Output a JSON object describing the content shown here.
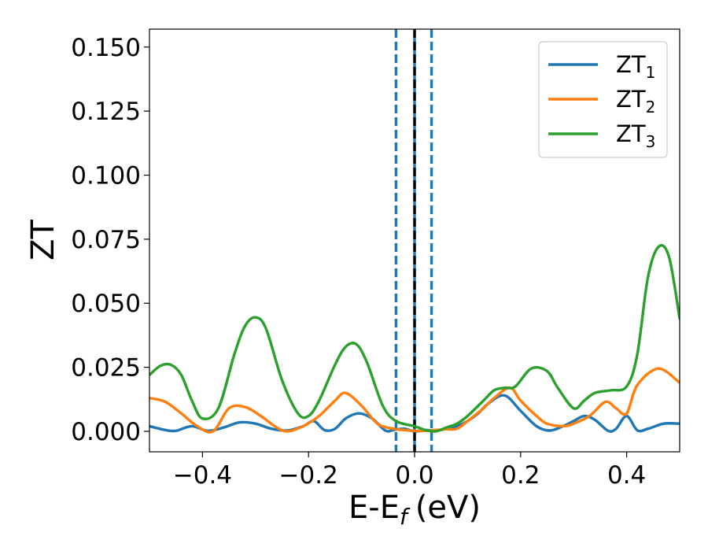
{
  "chart_data": {
    "type": "line",
    "title": "",
    "xlabel": "E-E",
    "xlabel_sub": "f",
    "xlabel_unit": "(eV)",
    "ylabel": "ZT",
    "xlim": [
      -0.5,
      0.5
    ],
    "ylim": [
      -0.008,
      0.157
    ],
    "x_ticks": [
      -0.4,
      -0.2,
      0.0,
      0.2,
      0.4
    ],
    "x_tick_labels": [
      "−0.4",
      "−0.2",
      "0.0",
      "0.2",
      "0.4"
    ],
    "y_ticks": [
      0.0,
      0.025,
      0.05,
      0.075,
      0.1,
      0.125,
      0.15
    ],
    "y_tick_labels": [
      "0.000",
      "0.025",
      "0.050",
      "0.075",
      "0.100",
      "0.125",
      "0.150"
    ],
    "grid": false,
    "legend_position": "top-right",
    "vertical_lines": [
      {
        "x": -0.035,
        "style": "dashed",
        "color": "#1f77b4"
      },
      {
        "x": 0.0,
        "style": "solid",
        "color": "#1f77b4"
      },
      {
        "x": 0.0,
        "style": "dashed",
        "color": "#000000"
      },
      {
        "x": 0.032,
        "style": "dashed",
        "color": "#1f77b4"
      }
    ],
    "series": [
      {
        "name": "ZT",
        "name_sub": "1",
        "color": "#1f77b4",
        "x": [
          -0.5,
          -0.47,
          -0.45,
          -0.42,
          -0.39,
          -0.36,
          -0.33,
          -0.3,
          -0.27,
          -0.24,
          -0.21,
          -0.19,
          -0.17,
          -0.15,
          -0.13,
          -0.105,
          -0.08,
          -0.055,
          -0.04,
          -0.02,
          0.0,
          0.02,
          0.04,
          0.06,
          0.08,
          0.1,
          0.12,
          0.14,
          0.17,
          0.2,
          0.23,
          0.255,
          0.28,
          0.3,
          0.32,
          0.34,
          0.365,
          0.38,
          0.4,
          0.42,
          0.44,
          0.47,
          0.5
        ],
        "y": [
          0.002,
          0.0005,
          0.0002,
          0.002,
          0.0002,
          0.0015,
          0.0035,
          0.003,
          0.001,
          0.0003,
          0.002,
          0.004,
          0.0005,
          0.001,
          0.005,
          0.007,
          0.005,
          0.0003,
          0.0005,
          0.001,
          0.0,
          0.0005,
          0.0003,
          0.001,
          0.002,
          0.004,
          0.007,
          0.011,
          0.014,
          0.008,
          0.002,
          0.0003,
          0.002,
          0.004,
          0.006,
          0.0045,
          0.0002,
          0.001,
          0.006,
          0.0004,
          0.001,
          0.003,
          0.003
        ]
      },
      {
        "name": "ZT",
        "name_sub": "2",
        "color": "#ff7f0e",
        "x": [
          -0.5,
          -0.47,
          -0.44,
          -0.41,
          -0.38,
          -0.35,
          -0.32,
          -0.29,
          -0.26,
          -0.24,
          -0.21,
          -0.18,
          -0.15,
          -0.13,
          -0.1,
          -0.07,
          -0.04,
          -0.02,
          0.0,
          0.02,
          0.04,
          0.06,
          0.08,
          0.1,
          0.13,
          0.15,
          0.18,
          0.2,
          0.23,
          0.25,
          0.28,
          0.3,
          0.33,
          0.36,
          0.38,
          0.4,
          0.42,
          0.46,
          0.5
        ],
        "y": [
          0.013,
          0.0115,
          0.007,
          0.002,
          0.0,
          0.009,
          0.0095,
          0.006,
          0.0015,
          0.0,
          0.002,
          0.006,
          0.012,
          0.015,
          0.01,
          0.003,
          0.001,
          0.0005,
          0.0002,
          0.0002,
          0.0005,
          0.0008,
          0.001,
          0.004,
          0.009,
          0.013,
          0.017,
          0.012,
          0.006,
          0.003,
          0.002,
          0.003,
          0.006,
          0.0115,
          0.009,
          0.007,
          0.018,
          0.0245,
          0.019
        ]
      },
      {
        "name": "ZT",
        "name_sub": "3",
        "color": "#2ca02c",
        "x": [
          -0.5,
          -0.48,
          -0.46,
          -0.44,
          -0.42,
          -0.4,
          -0.37,
          -0.34,
          -0.32,
          -0.3,
          -0.28,
          -0.25,
          -0.22,
          -0.2,
          -0.18,
          -0.15,
          -0.13,
          -0.11,
          -0.09,
          -0.06,
          -0.035,
          0.0,
          0.02,
          0.04,
          0.06,
          0.08,
          0.1,
          0.13,
          0.15,
          0.17,
          0.19,
          0.22,
          0.25,
          0.27,
          0.3,
          0.32,
          0.34,
          0.37,
          0.4,
          0.42,
          0.44,
          0.46,
          0.48,
          0.5
        ],
        "y": [
          0.022,
          0.0255,
          0.026,
          0.022,
          0.012,
          0.005,
          0.009,
          0.03,
          0.041,
          0.0445,
          0.04,
          0.02,
          0.007,
          0.006,
          0.012,
          0.026,
          0.033,
          0.034,
          0.027,
          0.01,
          0.004,
          0.002,
          0.0005,
          0.0,
          0.0015,
          0.003,
          0.006,
          0.012,
          0.016,
          0.017,
          0.0175,
          0.0245,
          0.0235,
          0.017,
          0.009,
          0.012,
          0.015,
          0.016,
          0.0175,
          0.03,
          0.06,
          0.072,
          0.068,
          0.044
        ]
      }
    ]
  }
}
